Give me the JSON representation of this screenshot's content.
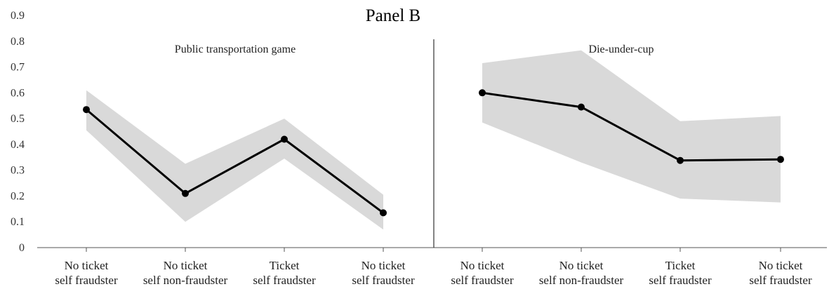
{
  "chart_data": {
    "type": "line",
    "title": "Panel B",
    "ylim": [
      0,
      0.9
    ],
    "y_ticks": [
      "0",
      "0.1",
      "0.2",
      "0.3",
      "0.4",
      "0.5",
      "0.6",
      "0.7",
      "0.8",
      "0.9"
    ],
    "grid": false,
    "colors": {
      "line": "#000000",
      "band": "#d9d9d9",
      "axis": "#555555"
    },
    "panels": [
      {
        "label": "Public transportation game",
        "categories": [
          [
            "No ticket",
            "self fraudster"
          ],
          [
            "No ticket",
            "self non-fraudster"
          ],
          [
            "Ticket",
            "self fraudster"
          ],
          [
            "No ticket",
            "self fraudster"
          ]
        ],
        "values": [
          0.535,
          0.21,
          0.42,
          0.135
        ],
        "lower": [
          0.455,
          0.1,
          0.345,
          0.07
        ],
        "upper": [
          0.61,
          0.325,
          0.5,
          0.205
        ]
      },
      {
        "label": "Die-under-cup",
        "categories": [
          [
            "No ticket",
            "self fraudster"
          ],
          [
            "No ticket",
            "self non-fraudster"
          ],
          [
            "Ticket",
            "self fraudster"
          ],
          [
            "No ticket",
            "self fraudster"
          ]
        ],
        "values": [
          0.6,
          0.545,
          0.338,
          0.342
        ],
        "lower": [
          0.485,
          0.33,
          0.19,
          0.175
        ],
        "upper": [
          0.715,
          0.765,
          0.49,
          0.51
        ]
      }
    ]
  }
}
